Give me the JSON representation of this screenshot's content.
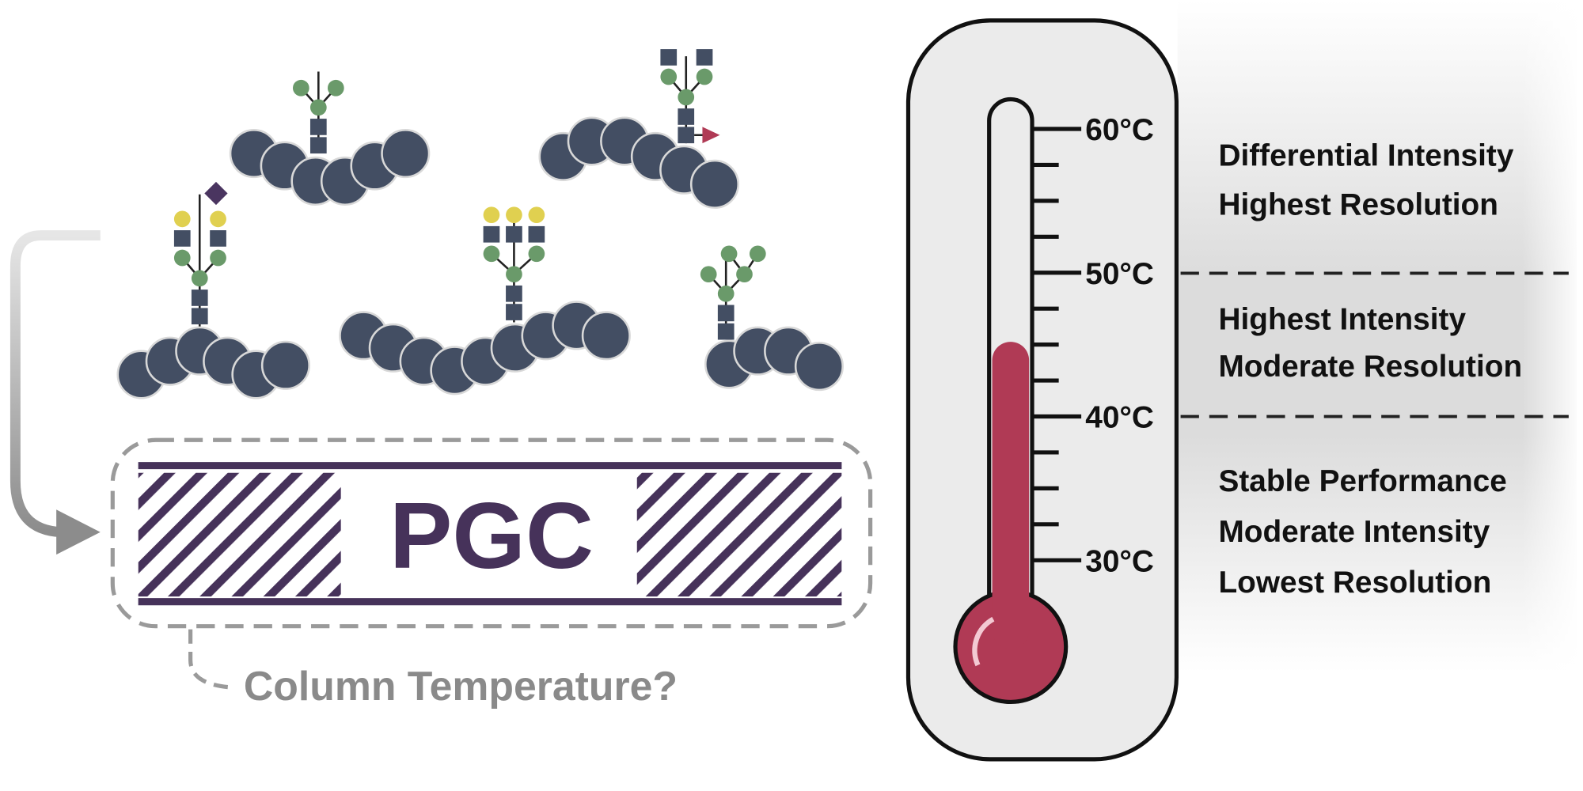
{
  "column": {
    "label": "PGC",
    "question": "Column Temperature?"
  },
  "thermometer": {
    "ticks": [
      "60°C",
      "50°C",
      "40°C",
      "30°C"
    ]
  },
  "zones": [
    {
      "lines": [
        "Differential Intensity",
        "Highest Resolution"
      ]
    },
    {
      "lines": [
        "Highest Intensity",
        "Moderate Resolution"
      ]
    },
    {
      "lines": [
        "Stable Performance",
        "Moderate Intensity",
        "Lowest Resolution"
      ]
    }
  ]
}
